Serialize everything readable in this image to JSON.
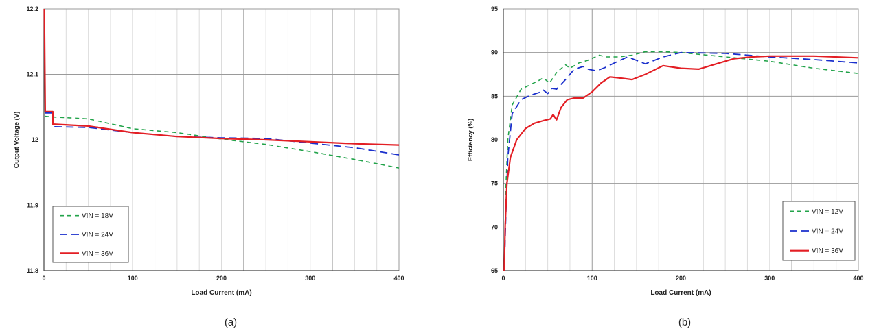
{
  "chart_data": [
    {
      "type": "line",
      "panel_label": "(a)",
      "xlabel": "Load Current (mA)",
      "ylabel": "Output Voltage (V)",
      "xlim": [
        0,
        400
      ],
      "ylim": [
        11.8,
        12.2
      ],
      "xticks": [
        0,
        100,
        200,
        300,
        400
      ],
      "yticks": [
        11.8,
        11.9,
        12,
        12.1,
        12.2
      ],
      "ytick_labels": [
        "11.8",
        "11.9",
        "12",
        "12.1",
        "12.2"
      ],
      "major_grid_x": [
        0,
        100,
        225,
        325,
        400
      ],
      "minor_grid_x": [
        25,
        50,
        75,
        125,
        150,
        175,
        200,
        250,
        275,
        300,
        350,
        375
      ],
      "major_grid_y": [
        12.1
      ],
      "legend_position": "bottom-left",
      "series": [
        {
          "name": "VIN = 18V",
          "color": "#22a34a",
          "dash": "6,5",
          "width": 1.6,
          "points": [
            [
              1,
              12.036
            ],
            [
              10,
              12.035
            ],
            [
              50,
              12.032
            ],
            [
              100,
              12.017
            ],
            [
              150,
              12.011
            ],
            [
              200,
              12.001
            ],
            [
              250,
              11.993
            ],
            [
              300,
              11.982
            ],
            [
              350,
              11.97
            ],
            [
              400,
              11.957
            ]
          ]
        },
        {
          "name": "VIN = 24V",
          "color": "#1a2fcc",
          "dash": "11,6",
          "width": 1.8,
          "points": [
            [
              1,
              12.041
            ],
            [
              10,
              12.041
            ],
            [
              10,
              12.02
            ],
            [
              50,
              12.019
            ],
            [
              100,
              12.011
            ],
            [
              150,
              12.005
            ],
            [
              200,
              12.003
            ],
            [
              250,
              12.002
            ],
            [
              300,
              11.995
            ],
            [
              350,
              11.988
            ],
            [
              400,
              11.977
            ]
          ]
        },
        {
          "name": "VIN = 36V",
          "color": "#e31e24",
          "dash": "",
          "width": 2.2,
          "points": [
            [
              0.5,
              12.2
            ],
            [
              1.5,
              12.043
            ],
            [
              10,
              12.043
            ],
            [
              10,
              12.024
            ],
            [
              50,
              12.021
            ],
            [
              100,
              12.011
            ],
            [
              150,
              12.005
            ],
            [
              200,
              12.002
            ],
            [
              250,
              12.0
            ],
            [
              300,
              11.997
            ],
            [
              350,
              11.994
            ],
            [
              400,
              11.992
            ]
          ]
        }
      ]
    },
    {
      "type": "line",
      "panel_label": "(b)",
      "xlabel": "Load Current (mA)",
      "ylabel": "Efficiency (%)",
      "xlim": [
        0,
        400
      ],
      "ylim": [
        65,
        95
      ],
      "xticks": [
        0,
        100,
        200,
        300,
        400
      ],
      "yticks": [
        65,
        70,
        75,
        80,
        85,
        90,
        95
      ],
      "ytick_labels": [
        "65",
        "70",
        "75",
        "80",
        "85",
        "90",
        "95"
      ],
      "major_grid_x": [
        0,
        100,
        225,
        325,
        400
      ],
      "minor_grid_x": [
        25,
        50,
        75,
        125,
        150,
        175,
        200,
        250,
        275,
        300,
        350,
        375
      ],
      "major_grid_y": [
        75,
        85,
        90
      ],
      "legend_position": "bottom-right",
      "series": [
        {
          "name": "VIN = 12V",
          "color": "#22a34a",
          "dash": "6,5",
          "width": 1.6,
          "points": [
            [
              1,
              65
            ],
            [
              3,
              75
            ],
            [
              5,
              80
            ],
            [
              10,
              84
            ],
            [
              20,
              85.8
            ],
            [
              30,
              86.3
            ],
            [
              40,
              86.8
            ],
            [
              45,
              87.1
            ],
            [
              52,
              86.5
            ],
            [
              60,
              87.7
            ],
            [
              70,
              88.6
            ],
            [
              75,
              88.2
            ],
            [
              85,
              88.8
            ],
            [
              95,
              89.1
            ],
            [
              108,
              89.7
            ],
            [
              115,
              89.5
            ],
            [
              130,
              89.5
            ],
            [
              145,
              89.7
            ],
            [
              160,
              90.1
            ],
            [
              180,
              90.1
            ],
            [
              200,
              90
            ],
            [
              250,
              89.5
            ],
            [
              300,
              89
            ],
            [
              350,
              88.2
            ],
            [
              400,
              87.6
            ]
          ]
        },
        {
          "name": "VIN = 24V",
          "color": "#1a2fcc",
          "dash": "11,6",
          "width": 1.8,
          "points": [
            [
              1,
              65
            ],
            [
              3,
              72
            ],
            [
              5,
              78
            ],
            [
              10,
              83
            ],
            [
              20,
              84.6
            ],
            [
              30,
              85.1
            ],
            [
              40,
              85.4
            ],
            [
              45,
              85.7
            ],
            [
              50,
              85.3
            ],
            [
              55,
              85.9
            ],
            [
              60,
              85.8
            ],
            [
              70,
              86.9
            ],
            [
              80,
              88.1
            ],
            [
              90,
              88.4
            ],
            [
              95,
              88.1
            ],
            [
              105,
              87.9
            ],
            [
              115,
              88.3
            ],
            [
              125,
              88.8
            ],
            [
              140,
              89.5
            ],
            [
              160,
              88.7
            ],
            [
              180,
              89.5
            ],
            [
              200,
              90
            ],
            [
              250,
              89.9
            ],
            [
              300,
              89.5
            ],
            [
              350,
              89.2
            ],
            [
              400,
              88.8
            ]
          ]
        },
        {
          "name": "VIN = 36V",
          "color": "#e31e24",
          "dash": "",
          "width": 2.2,
          "points": [
            [
              1,
              65
            ],
            [
              2,
              70
            ],
            [
              4,
              75
            ],
            [
              8,
              78
            ],
            [
              15,
              80
            ],
            [
              25,
              81.3
            ],
            [
              35,
              81.9
            ],
            [
              45,
              82.2
            ],
            [
              53,
              82.4
            ],
            [
              56,
              82.9
            ],
            [
              60,
              82.3
            ],
            [
              65,
              83.7
            ],
            [
              72,
              84.6
            ],
            [
              80,
              84.8
            ],
            [
              90,
              84.8
            ],
            [
              100,
              85.5
            ],
            [
              110,
              86.5
            ],
            [
              120,
              87.2
            ],
            [
              130,
              87.1
            ],
            [
              145,
              86.9
            ],
            [
              160,
              87.5
            ],
            [
              180,
              88.5
            ],
            [
              200,
              88.2
            ],
            [
              220,
              88.1
            ],
            [
              240,
              88.7
            ],
            [
              260,
              89.3
            ],
            [
              280,
              89.5
            ],
            [
              300,
              89.6
            ],
            [
              350,
              89.6
            ],
            [
              400,
              89.4
            ]
          ]
        }
      ]
    }
  ]
}
